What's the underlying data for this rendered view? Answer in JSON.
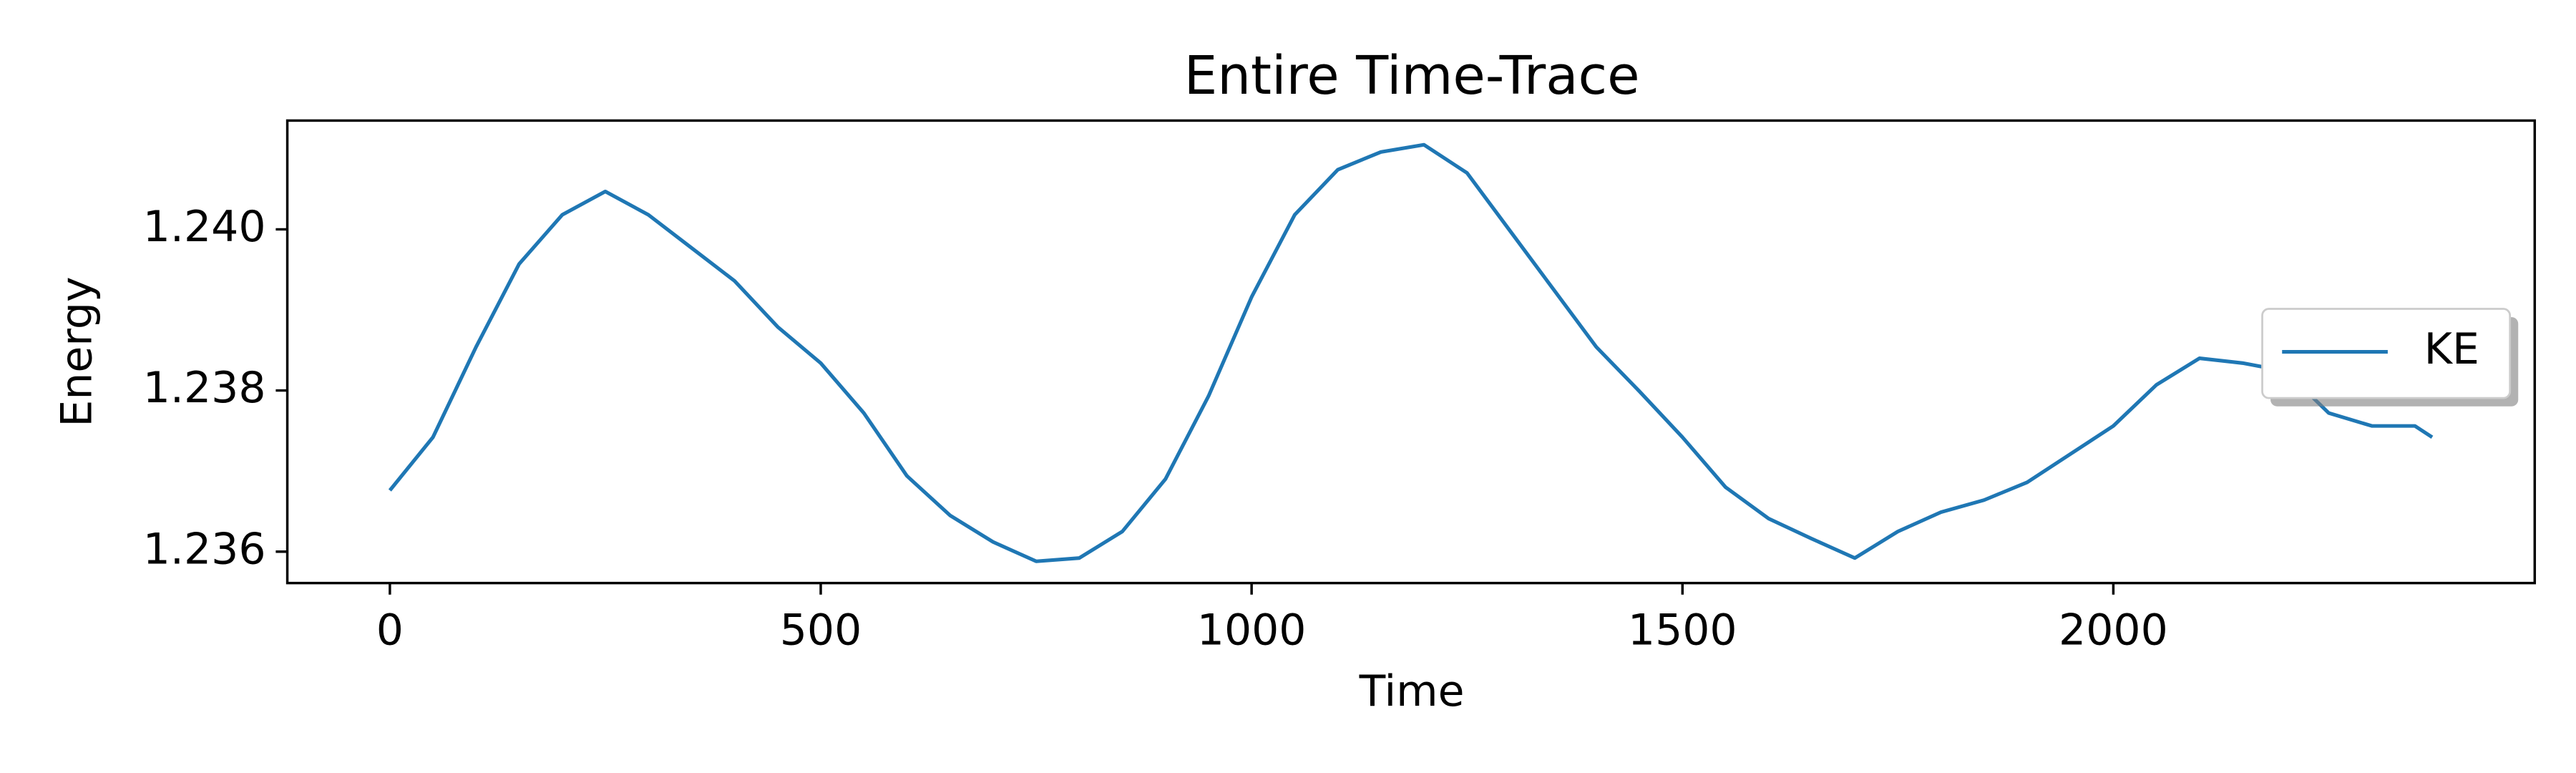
{
  "chart_data": {
    "type": "line",
    "title": "Entire Time-Trace",
    "x_label": "Time",
    "y_label": "Energy",
    "x": [
      0,
      50,
      100,
      150,
      200,
      250,
      300,
      350,
      400,
      450,
      500,
      550,
      600,
      650,
      700,
      750,
      800,
      850,
      900,
      950,
      1000,
      1050,
      1100,
      1150,
      1200,
      1250,
      1300,
      1350,
      1400,
      1450,
      1500,
      1550,
      1600,
      1650,
      1700,
      1750,
      1800,
      1850,
      1900,
      1950,
      2000,
      2050,
      2100,
      2150,
      2200,
      2250,
      2300,
      2350,
      2370
    ],
    "series": [
      {
        "name": "KE",
        "color": "#1f77b4",
        "values": [
          1.23676,
          1.23742,
          1.23854,
          1.23957,
          1.24018,
          1.24047,
          1.24018,
          1.23977,
          1.23936,
          1.23879,
          1.23834,
          1.23772,
          1.23694,
          1.23645,
          1.23612,
          1.23588,
          1.23592,
          1.23625,
          1.2369,
          1.23793,
          1.23916,
          1.24018,
          1.24074,
          1.24096,
          1.24105,
          1.2407,
          1.23998,
          1.23926,
          1.23854,
          1.23799,
          1.23742,
          1.2368,
          1.23641,
          1.23616,
          1.23592,
          1.23625,
          1.23649,
          1.23664,
          1.23686,
          1.23721,
          1.23756,
          1.23807,
          1.2384,
          1.23834,
          1.23824,
          1.23772,
          1.23756,
          1.23756,
          1.23742
        ]
      }
    ],
    "xlim": [
      -119,
      2489
    ],
    "xticks": [
      0,
      500,
      1000,
      1500,
      2000
    ],
    "ylim": [
      1.23561,
      1.24135
    ],
    "yticks": [
      1.236,
      1.238,
      {
        "value": 1.24,
        "label": "1.240"
      }
    ],
    "grid": false,
    "legend": "center right"
  }
}
